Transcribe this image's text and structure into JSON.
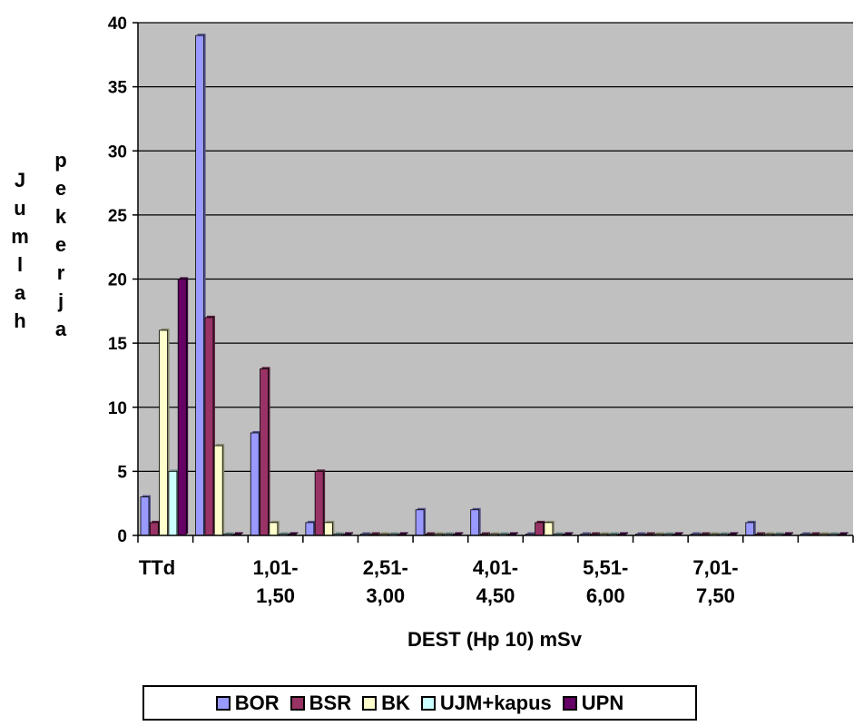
{
  "chart_data": {
    "type": "bar",
    "xlabel": "DEST (Hp 10) mSv",
    "ylabel_part1": "Jumlah",
    "ylabel_part2": "pekerja",
    "ylim": [
      0,
      40
    ],
    "yticks": [
      0,
      5,
      10,
      15,
      20,
      25,
      30,
      35,
      40
    ],
    "grid": true,
    "legend_position": "bottom",
    "categories": [
      "TTd",
      "",
      "",
      "1,01-1,50",
      "",
      "2,51-3,00",
      "",
      "4,01-4,50",
      "",
      "5,51-6,00",
      "",
      "7,01-7,50",
      ""
    ],
    "visible_tick_labels": [
      {
        "index": 0,
        "lines": [
          "TTd"
        ]
      },
      {
        "index": 2,
        "lines": [
          "1,01-",
          "1,50"
        ]
      },
      {
        "index": 4,
        "lines": [
          "2,51-",
          "3,00"
        ]
      },
      {
        "index": 6,
        "lines": [
          "4,01-",
          "4,50"
        ]
      },
      {
        "index": 8,
        "lines": [
          "5,51-",
          "6,00"
        ]
      },
      {
        "index": 10,
        "lines": [
          "7,01-",
          "7,50"
        ]
      }
    ],
    "series": [
      {
        "name": "BOR",
        "color": "#9999ff",
        "values": [
          3,
          39,
          8,
          1,
          0,
          2,
          2,
          0,
          0,
          0,
          0,
          1,
          0
        ]
      },
      {
        "name": "BSR",
        "color": "#993366",
        "values": [
          1,
          17,
          13,
          5,
          0,
          0,
          0,
          1,
          0,
          0,
          0,
          0,
          0
        ]
      },
      {
        "name": "BK",
        "color": "#ffffcc",
        "values": [
          16,
          7,
          1,
          1,
          0,
          0,
          0,
          1,
          0,
          0,
          0,
          0,
          0
        ]
      },
      {
        "name": "UJM+kapus",
        "color": "#ccffff",
        "values": [
          5,
          0,
          0,
          0,
          0,
          0,
          0,
          0,
          0,
          0,
          0,
          0,
          0
        ]
      },
      {
        "name": "UPN",
        "color": "#660066",
        "values": [
          20,
          0,
          0,
          0,
          0,
          0,
          0,
          0,
          0,
          0,
          0,
          0,
          0
        ]
      }
    ]
  },
  "colors": {
    "plot_background": "#c0c0c0",
    "gridline": "#000000"
  }
}
